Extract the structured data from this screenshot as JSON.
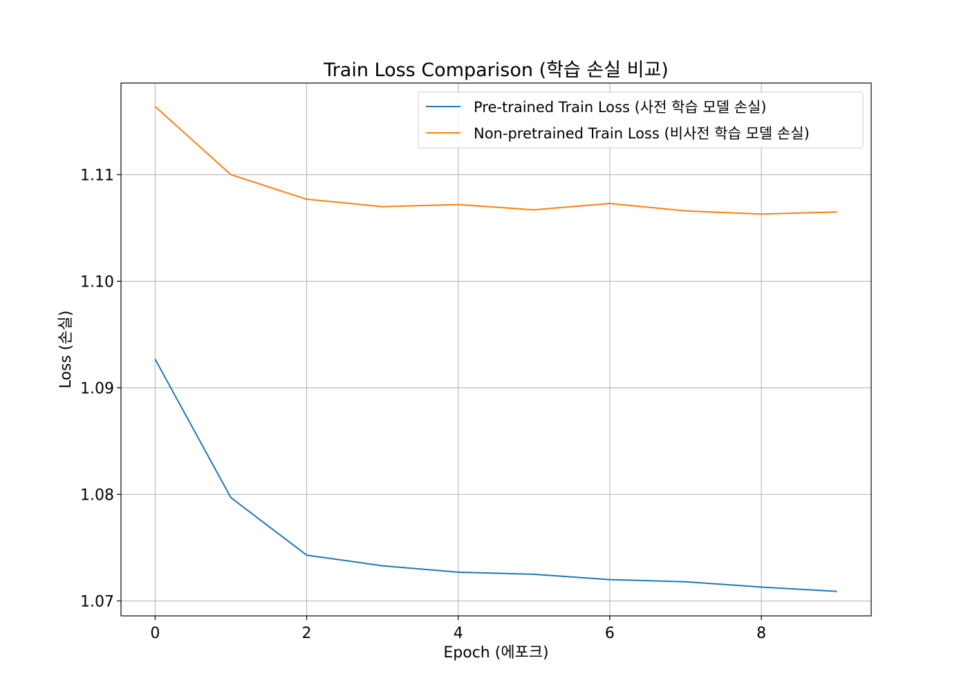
{
  "chart_data": {
    "type": "line",
    "title": "Train Loss Comparison (학습 손실 비교)",
    "xlabel": "Epoch (에포크)",
    "ylabel": "Loss (손실)",
    "x": [
      0,
      1,
      2,
      3,
      4,
      5,
      6,
      7,
      8,
      9
    ],
    "xlim": [
      -0.45,
      9.45
    ],
    "ylim": [
      1.0686,
      1.1186
    ],
    "xticks": [
      0,
      2,
      4,
      6,
      8
    ],
    "yticks": [
      1.07,
      1.08,
      1.09,
      1.1,
      1.11
    ],
    "ytick_labels": [
      "1.07",
      "1.08",
      "1.09",
      "1.10",
      "1.11"
    ],
    "grid": true,
    "legend_position": "upper-right",
    "series": [
      {
        "name": "Pre-trained Train Loss (사전 학습 모델 손실)",
        "color": "#1f77b4",
        "values": [
          1.0927,
          1.0797,
          1.0743,
          1.0733,
          1.0727,
          1.0725,
          1.072,
          1.0718,
          1.0713,
          1.0709
        ]
      },
      {
        "name": "Non-pretrained Train Loss (비사전 학습 모델 손실)",
        "color": "#ff7f0e",
        "values": [
          1.1164,
          1.11,
          1.1077,
          1.107,
          1.1072,
          1.1067,
          1.1073,
          1.1066,
          1.1063,
          1.1065
        ]
      }
    ]
  }
}
